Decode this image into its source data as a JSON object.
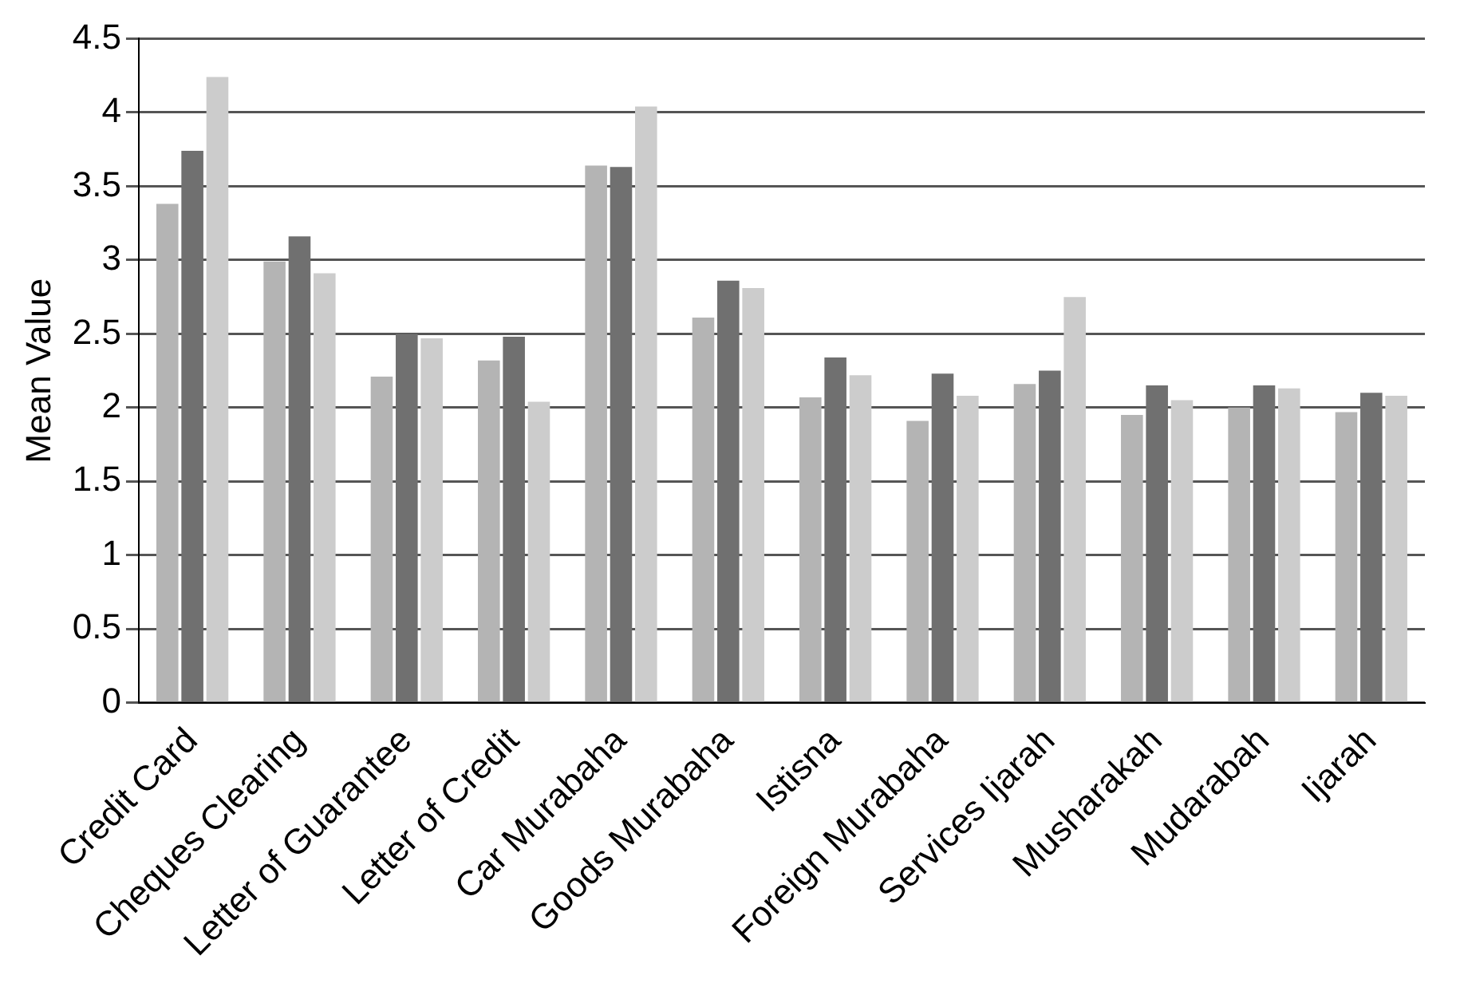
{
  "chart_data": {
    "type": "bar",
    "ylabel": "Mean Value",
    "categories": [
      "Credit Card",
      "Cheques Clearing",
      "Letter of Guarantee",
      "Letter of Credit",
      "Car Murabaha",
      "Goods Murabaha",
      "Istisna",
      "Foreign Murabaha",
      "Services Ijarah",
      "Musharakah",
      "Mudarabah",
      "Ijarah"
    ],
    "series": [
      {
        "color": "#b4b4b4",
        "values": [
          3.38,
          2.99,
          2.21,
          2.32,
          3.64,
          2.61,
          2.07,
          1.91,
          2.16,
          1.95,
          2.0,
          1.97
        ]
      },
      {
        "color": "#707070",
        "values": [
          3.74,
          3.16,
          2.5,
          2.48,
          3.63,
          2.86,
          2.34,
          2.23,
          2.25,
          2.15,
          2.15,
          2.1
        ]
      },
      {
        "color": "#cccccc",
        "values": [
          4.24,
          2.91,
          2.47,
          2.04,
          4.04,
          2.81,
          2.22,
          2.08,
          2.75,
          2.05,
          2.13,
          2.08
        ]
      }
    ],
    "ylim": [
      0,
      4.5
    ],
    "yticks": [
      0,
      0.5,
      1,
      1.5,
      2,
      2.5,
      3,
      3.5,
      4,
      4.5
    ],
    "grid": "y"
  }
}
